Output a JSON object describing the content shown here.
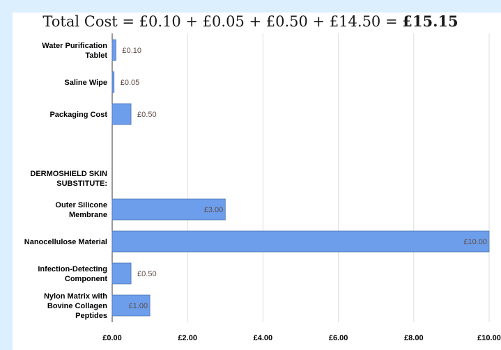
{
  "title": {
    "formula": "Total Cost = £0.10 + £0.05 + £0.50 + £14.50 = ",
    "total": "£15.15"
  },
  "chart_data": {
    "type": "bar",
    "orientation": "horizontal",
    "title": "Total Cost = £0.10 + £0.05 + £0.50 + £14.50 = £15.15",
    "xlabel": "",
    "ylabel": "",
    "xlim": [
      0,
      10
    ],
    "x_ticks": [
      "£0.00",
      "£2.00",
      "£4.00",
      "£6.00",
      "£8.00",
      "£10.00"
    ],
    "grid": "vertical",
    "bar_color": "#6d9eeb",
    "categories": [
      {
        "label_lines": [
          "Water Purification",
          "Tablet"
        ],
        "value": 0.1,
        "data_label": "£0.10"
      },
      {
        "label_lines": [
          "Saline Wipe"
        ],
        "value": 0.05,
        "data_label": "£0.05"
      },
      {
        "label_lines": [
          "Packaging Cost"
        ],
        "value": 0.5,
        "data_label": "£0.50"
      },
      {
        "label_lines": [
          ""
        ],
        "value": null,
        "data_label": ""
      },
      {
        "label_lines": [
          "DERMOSHIELD SKIN",
          "SUBSTITUTE:"
        ],
        "value": null,
        "data_label": ""
      },
      {
        "label_lines": [
          "Outer Silicone",
          "Membrane"
        ],
        "value": 3.0,
        "data_label": "£3.00"
      },
      {
        "label_lines": [
          "Nanocellulose Material"
        ],
        "value": 10.0,
        "data_label": "£10.00"
      },
      {
        "label_lines": [
          "Infection-Detecting",
          "Component"
        ],
        "value": 0.5,
        "data_label": "£0.50"
      },
      {
        "label_lines": [
          "Nylon Matrix with",
          "Bovine Collagen",
          "Peptides"
        ],
        "value": 1.0,
        "data_label": "£1.00"
      }
    ]
  }
}
